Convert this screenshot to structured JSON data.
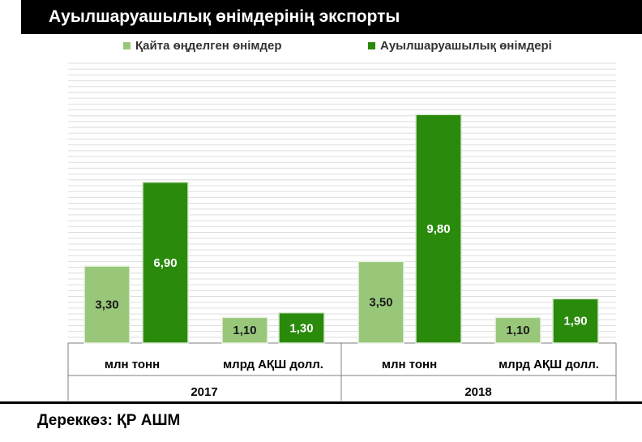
{
  "title": "Ауылшаруашылық өнімдерінің экспорты",
  "source": "Дереккөз: ҚР АШМ",
  "colors": {
    "processed": "#98c77a",
    "agricultural": "#2a8a0c",
    "title_bg": "#000000"
  },
  "chart_data": {
    "type": "bar",
    "title": "Ауылшаруашылық өнімдерінің экспорты",
    "groups": [
      {
        "year": "2017",
        "categories": [
          "млн тонн",
          "млрд АҚШ долл."
        ]
      },
      {
        "year": "2018",
        "categories": [
          "млн тонн",
          "млрд АҚШ долл."
        ]
      }
    ],
    "categories": [
      "млн тонн",
      "млрд АҚШ долл.",
      "млн тонн",
      "млрд АҚШ долл."
    ],
    "series": [
      {
        "name": "Қайта өңделген өнімдер",
        "values": [
          3.3,
          1.1,
          3.5,
          1.1
        ],
        "labels": [
          "3,30",
          "1,10",
          "3,50",
          "1,10"
        ],
        "color": "#98c77a"
      },
      {
        "name": "Ауылшаруашылық өнімдері",
        "values": [
          6.9,
          1.3,
          9.8,
          1.9
        ],
        "labels": [
          "6,90",
          "1,30",
          "9,80",
          "1,90"
        ],
        "color": "#2a8a0c"
      }
    ],
    "ylim": [
      0,
      12
    ],
    "grid": true,
    "legend_position": "top"
  }
}
